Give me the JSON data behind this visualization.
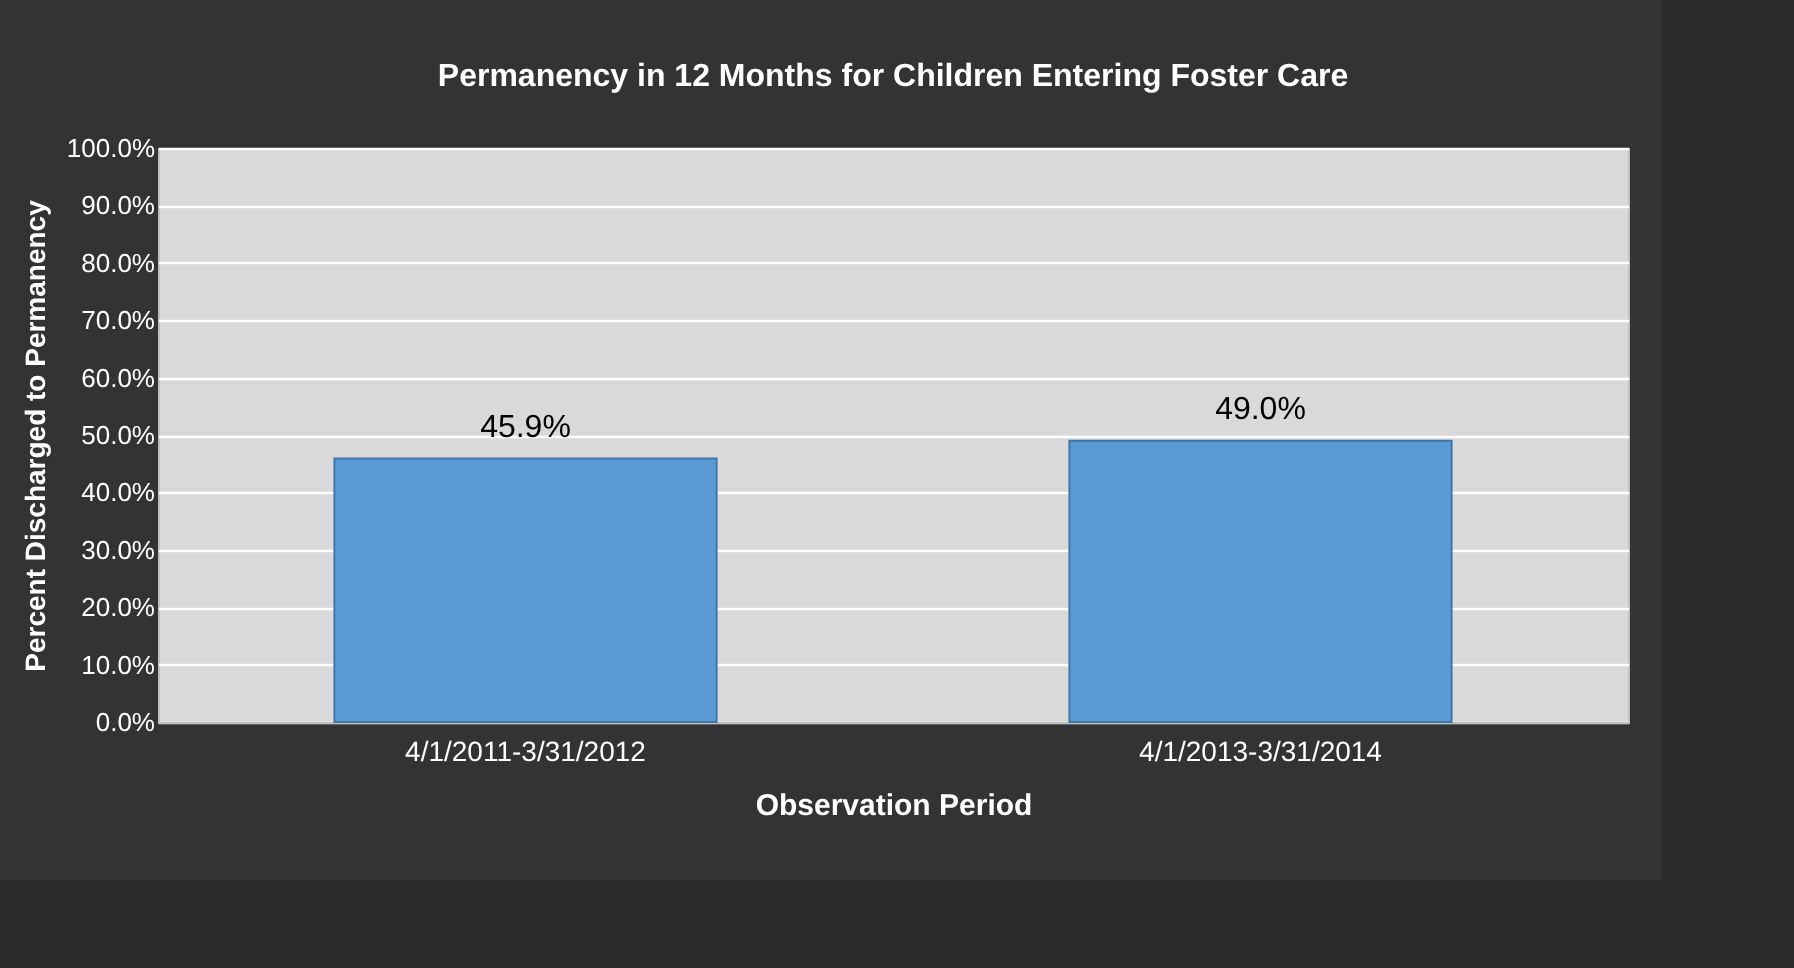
{
  "chart_data": {
    "type": "bar",
    "title": "Permanency in 12 Months for Children Entering Foster Care",
    "xlabel": "Observation Period",
    "ylabel": "Percent Discharged to Permanency",
    "categories": [
      "4/1/2011-3/31/2012",
      "4/1/2013-3/31/2014"
    ],
    "values": [
      45.9,
      49.0
    ],
    "value_labels": [
      "45.9%",
      "49.0%"
    ],
    "color": "#5b9bd5",
    "ylim": [
      0,
      100
    ],
    "yticks": [
      {
        "value": 0,
        "label": "0.0%"
      },
      {
        "value": 10,
        "label": "10.0%"
      },
      {
        "value": 20,
        "label": "20.0%"
      },
      {
        "value": 30,
        "label": "30.0%"
      },
      {
        "value": 40,
        "label": "40.0%"
      },
      {
        "value": 50,
        "label": "50.0%"
      },
      {
        "value": 60,
        "label": "60.0%"
      },
      {
        "value": 70,
        "label": "70.0%"
      },
      {
        "value": 80,
        "label": "80.0%"
      },
      {
        "value": 90,
        "label": "90.0%"
      },
      {
        "value": 100,
        "label": "100.0%"
      }
    ],
    "grid": "y"
  }
}
